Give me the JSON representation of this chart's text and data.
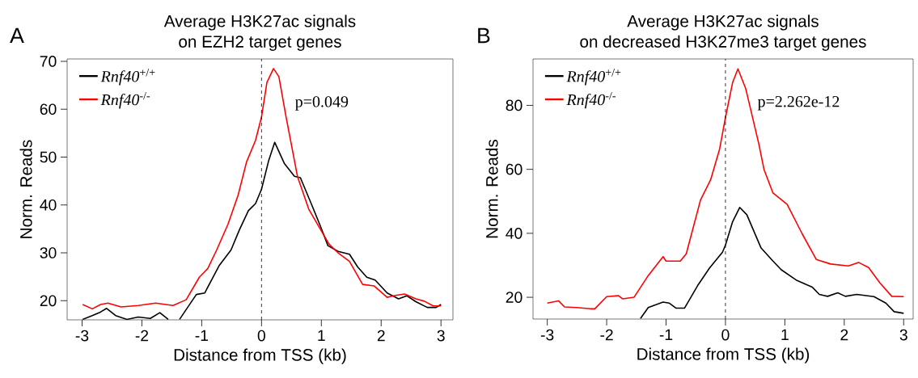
{
  "chart_data": [
    {
      "type": "line",
      "title": "Average H3K27ac signals",
      "subtitle": "on EZH2 target genes",
      "xlabel": "Distance from TSS (kb)",
      "ylabel": "Norm. Reads",
      "xlim": [
        -3.25,
        3.2
      ],
      "ylim": [
        16,
        70.5
      ],
      "xticks": [
        -3,
        -2,
        -1,
        0,
        1,
        2,
        3
      ],
      "yticks": [
        20,
        30,
        40,
        50,
        60,
        70
      ],
      "legend": "top left",
      "line_style": "solid",
      "ref_lines": [
        {
          "axis": "x",
          "value": 0,
          "color": "#000000",
          "line_style": "dashed"
        }
      ],
      "annotations": [
        "A",
        "p=0.049"
      ],
      "series": [
        {
          "name": "*Rnf40*$^{+/+}$",
          "color": "#000000",
          "x": [
            -2.99,
            -2.83,
            -2.71,
            -2.59,
            -2.44,
            -2.25,
            -2.06,
            -1.86,
            -1.7,
            -1.56,
            -1.45,
            -1.37,
            -1.09,
            -0.95,
            -0.71,
            -0.51,
            -0.37,
            -0.22,
            -0.1,
            0,
            0.12,
            0.22,
            0.38,
            0.55,
            0.65,
            0.84,
            0.99,
            1.11,
            1.28,
            1.47,
            1.61,
            1.76,
            1.9,
            2.1,
            2.29,
            2.43,
            2.58,
            2.77,
            2.92,
            3.0
          ],
          "values": [
            16.1,
            16.9,
            17.5,
            18.4,
            16.9,
            16.1,
            16.6,
            16.3,
            17.5,
            16.1,
            null,
            16.1,
            21.3,
            21.6,
            27.3,
            30.6,
            34.8,
            38.8,
            40.3,
            43.3,
            49.3,
            53.1,
            48.7,
            46.0,
            45.7,
            40.0,
            35.4,
            31.5,
            30.3,
            29.7,
            27.0,
            24.9,
            24.3,
            21.6,
            20.4,
            21.0,
            19.8,
            18.6,
            18.6,
            19.2
          ]
        },
        {
          "name": "*Rnf40*$^{-/-}$",
          "color": "#ff0000",
          "x": [
            -2.99,
            -2.83,
            -2.69,
            -2.57,
            -2.35,
            -2.06,
            -1.77,
            -1.48,
            -1.26,
            -1.04,
            -0.9,
            -0.75,
            -0.56,
            -0.39,
            -0.25,
            -0.1,
            0,
            0.09,
            0.2,
            0.29,
            0.41,
            0.6,
            0.79,
            0.99,
            1.13,
            1.28,
            1.47,
            1.69,
            1.88,
            2.1,
            2.24,
            2.39,
            2.58,
            2.72,
            2.87,
            3.0
          ],
          "values": [
            19.2,
            18.3,
            19.2,
            19.5,
            18.7,
            19.0,
            19.5,
            19.0,
            20.2,
            24.9,
            26.7,
            30.6,
            36.0,
            42.1,
            49.0,
            53.5,
            58.4,
            65.6,
            68.5,
            66.8,
            58.4,
            46.0,
            39.1,
            34.8,
            31.8,
            30.0,
            28.2,
            23.4,
            23.1,
            20.7,
            21.1,
            21.4,
            20.4,
            19.9,
            18.9,
            18.9
          ]
        }
      ]
    },
    {
      "type": "line",
      "title": "Average H3K27ac signals",
      "subtitle": "on decreased H3K27me3 target genes",
      "xlabel": "Distance from TSS (kb)",
      "ylabel": "Norm. Reads",
      "xlim": [
        -3.24,
        3.16
      ],
      "ylim": [
        13.2,
        94.5
      ],
      "xticks": [
        -3,
        -2,
        -1,
        0,
        1,
        2,
        3
      ],
      "yticks": [
        20,
        40,
        60,
        80
      ],
      "legend": "top left",
      "line_style": "solid",
      "ref_lines": [
        {
          "axis": "x",
          "value": 0,
          "color": "#000000",
          "line_style": "dashed"
        }
      ],
      "annotations": [
        "B",
        "p=2.262e-12"
      ],
      "series": [
        {
          "name": "*Rnf40*$^{+/+}$",
          "color": "#000000",
          "x": [
            -1.43,
            -1.3,
            -1.05,
            -0.95,
            -0.83,
            -0.69,
            -0.47,
            -0.27,
            -0.05,
            0,
            0.12,
            0.24,
            0.36,
            0.6,
            0.8,
            0.94,
            1.19,
            1.46,
            1.58,
            1.72,
            1.89,
            2.02,
            2.21,
            2.5,
            2.7,
            2.84,
            3.0
          ],
          "values": [
            13.4,
            16.8,
            18.5,
            18.2,
            16.6,
            16.6,
            23.6,
            29.1,
            34.1,
            36.3,
            43.6,
            48.1,
            45.8,
            35.4,
            31.3,
            28.6,
            25.4,
            23.2,
            20.9,
            20.3,
            21.4,
            20.3,
            20.9,
            20.2,
            18.2,
            15.5,
            15.0
          ]
        },
        {
          "name": "*Rnf40*$^{-/-}$",
          "color": "#ff0000",
          "x": [
            -3.0,
            -2.81,
            -2.71,
            -2.51,
            -2.27,
            -2.2,
            -2.0,
            -1.8,
            -1.73,
            -1.54,
            -1.3,
            -1.05,
            -1.0,
            -0.76,
            -0.66,
            -0.42,
            -0.25,
            -0.1,
            0,
            0.12,
            0.21,
            0.34,
            0.56,
            0.65,
            0.8,
            1.04,
            1.29,
            1.53,
            1.77,
            2.07,
            2.24,
            2.41,
            2.6,
            2.8,
            3.0
          ],
          "values": [
            18.2,
            18.9,
            17.0,
            16.8,
            16.4,
            16.4,
            20.2,
            20.5,
            19.5,
            20.0,
            26.8,
            32.7,
            31.3,
            31.3,
            33.6,
            50.4,
            56.7,
            66.2,
            76.2,
            87.1,
            91.4,
            85.3,
            68.1,
            59.9,
            52.6,
            49.0,
            39.9,
            31.8,
            30.4,
            29.8,
            30.9,
            29.3,
            24.5,
            20.3,
            20.2
          ]
        }
      ]
    }
  ]
}
